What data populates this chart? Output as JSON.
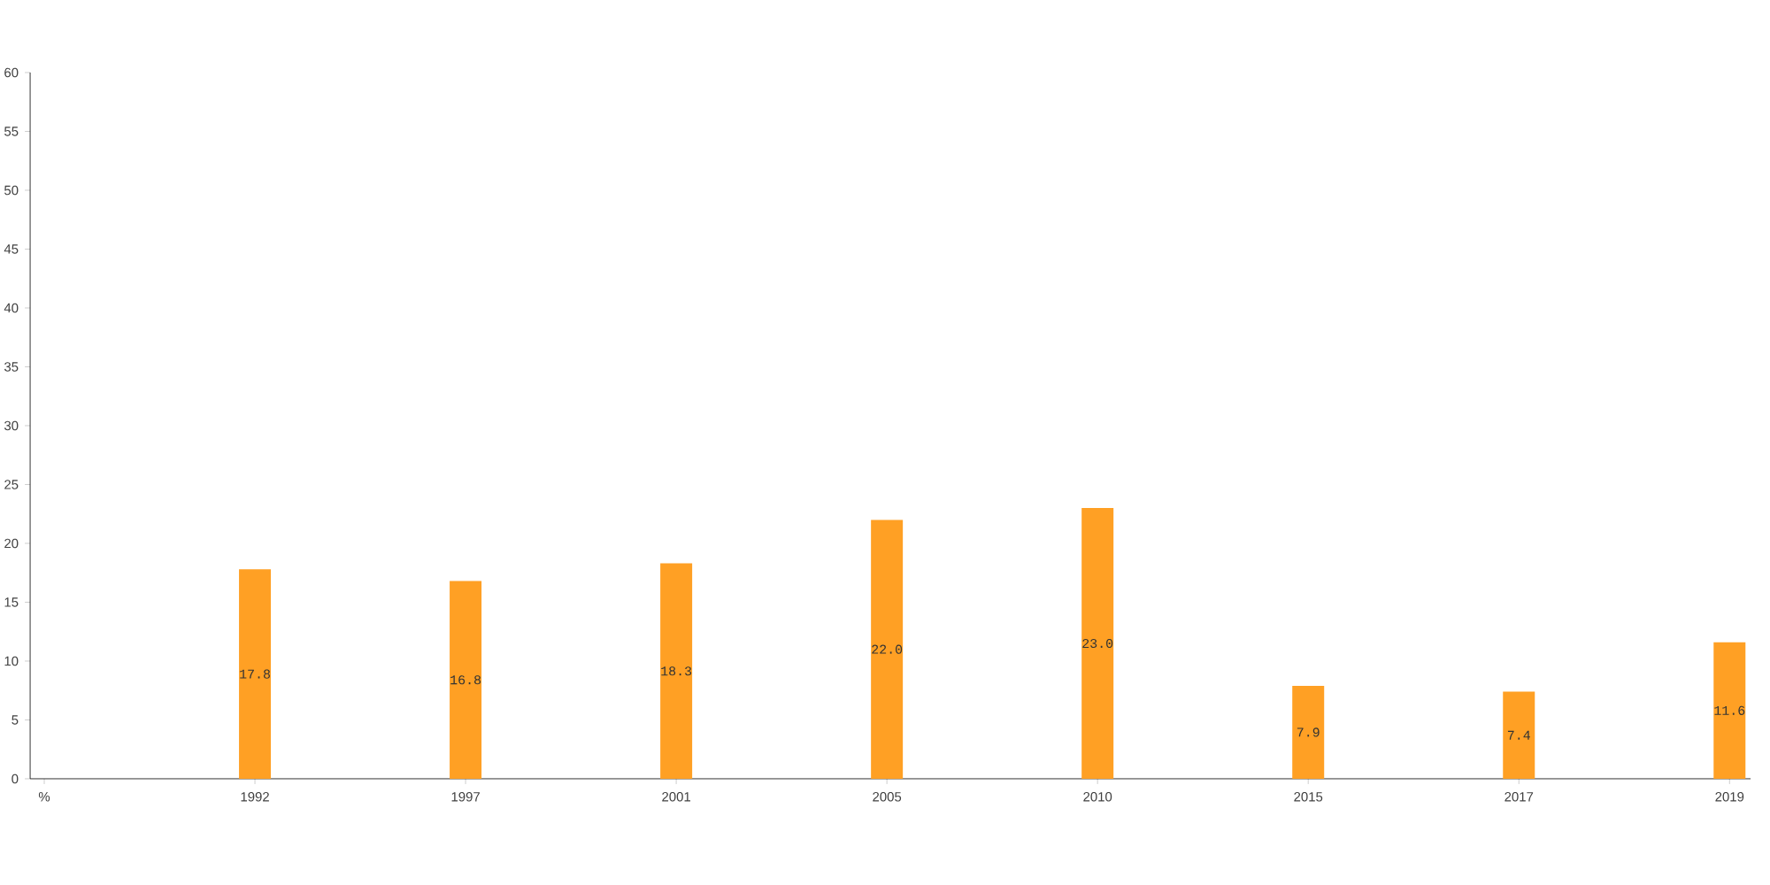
{
  "chart_data": {
    "type": "bar",
    "categories": [
      "%",
      "1992",
      "1997",
      "2001",
      "2005",
      "2010",
      "2015",
      "2017",
      "2019"
    ],
    "values": [
      null,
      17.8,
      16.8,
      18.3,
      22.0,
      23.0,
      7.9,
      7.4,
      11.6
    ],
    "value_labels": [
      null,
      "17.8",
      "16.8",
      "18.3",
      "22.0",
      "23.0",
      "7.9",
      "7.4",
      "11.6"
    ],
    "color": "#ffa024",
    "ylim": [
      0,
      60
    ],
    "yticks": [
      0,
      5,
      10,
      15,
      20,
      25,
      30,
      35,
      40,
      45,
      50,
      55,
      60
    ]
  }
}
